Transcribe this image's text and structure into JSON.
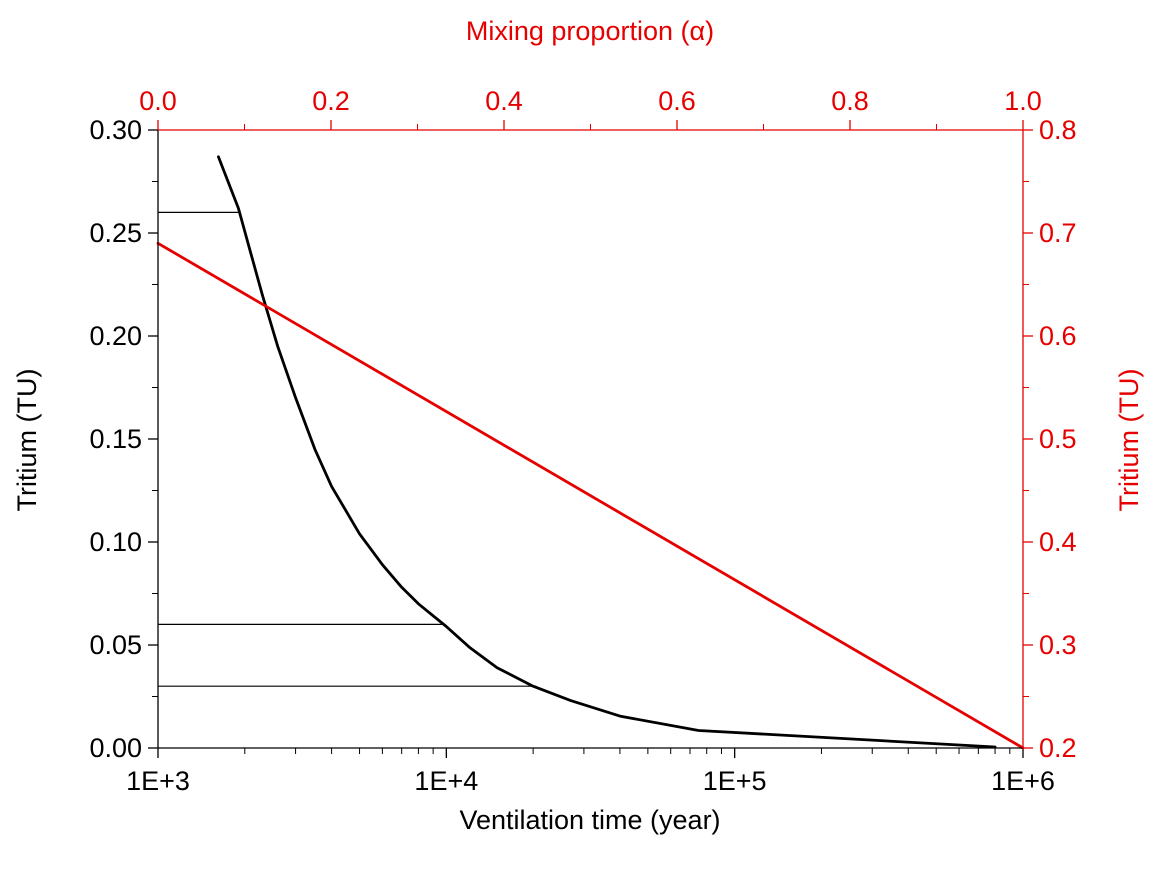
{
  "chart_data": {
    "type": "line",
    "title": "",
    "xlabel": "Ventilation time (year)",
    "ylabel": "Tritium (TU)",
    "x2label": "Mixing proportion (α)",
    "y2label": "Tritium (TU)",
    "x_scale": "log",
    "xlim": [
      1000,
      1000000
    ],
    "ylim": [
      0,
      0.3
    ],
    "x2lim": [
      0,
      1
    ],
    "y2lim": [
      0.2,
      0.8
    ],
    "x_ticks": [
      {
        "value": 1000,
        "label": "1E+3"
      },
      {
        "value": 10000,
        "label": "1E+4"
      },
      {
        "value": 100000,
        "label": "1E+5"
      },
      {
        "value": 1000000,
        "label": "1E+6"
      }
    ],
    "y_ticks": [
      {
        "value": 0.0,
        "label": "0.00"
      },
      {
        "value": 0.05,
        "label": "0.05"
      },
      {
        "value": 0.1,
        "label": "0.10"
      },
      {
        "value": 0.15,
        "label": "0.15"
      },
      {
        "value": 0.2,
        "label": "0.20"
      },
      {
        "value": 0.25,
        "label": "0.25"
      },
      {
        "value": 0.3,
        "label": "0.30"
      }
    ],
    "x2_ticks": [
      {
        "value": 0.0,
        "label": "0.0"
      },
      {
        "value": 0.2,
        "label": "0.2"
      },
      {
        "value": 0.4,
        "label": "0.4"
      },
      {
        "value": 0.6,
        "label": "0.6"
      },
      {
        "value": 0.8,
        "label": "0.8"
      },
      {
        "value": 1.0,
        "label": "1.0"
      }
    ],
    "y2_ticks": [
      {
        "value": 0.2,
        "label": "0.2"
      },
      {
        "value": 0.3,
        "label": "0.3"
      },
      {
        "value": 0.4,
        "label": "0.4"
      },
      {
        "value": 0.5,
        "label": "0.5"
      },
      {
        "value": 0.6,
        "label": "0.6"
      },
      {
        "value": 0.7,
        "label": "0.7"
      },
      {
        "value": 0.8,
        "label": "0.8"
      }
    ],
    "colors": {
      "primary": "#000000",
      "secondary": "#e60000"
    },
    "grid": false,
    "series": [
      {
        "axes": "bottom-left",
        "color": "#000000",
        "x": [
          1620,
          1900,
          2100,
          2300,
          2600,
          3000,
          3500,
          4000,
          5000,
          6000,
          7000,
          8000,
          10000,
          12000,
          15000,
          20000,
          27000,
          40000,
          75000,
          800000
        ],
        "y": [
          0.287,
          0.262,
          0.24,
          0.22,
          0.195,
          0.17,
          0.145,
          0.127,
          0.104,
          0.089,
          0.078,
          0.07,
          0.059,
          0.049,
          0.039,
          0.03,
          0.023,
          0.0155,
          0.0085,
          0.0005
        ]
      },
      {
        "axes": "top-right",
        "color": "#e60000",
        "x": [
          0.0,
          1.0
        ],
        "y": [
          0.69,
          0.2
        ]
      }
    ],
    "reference_lines": [
      {
        "y": 0.26,
        "x_end": 1900
      },
      {
        "y": 0.06,
        "x_end": 9800
      },
      {
        "y": 0.03,
        "x_end": 20500
      }
    ]
  }
}
